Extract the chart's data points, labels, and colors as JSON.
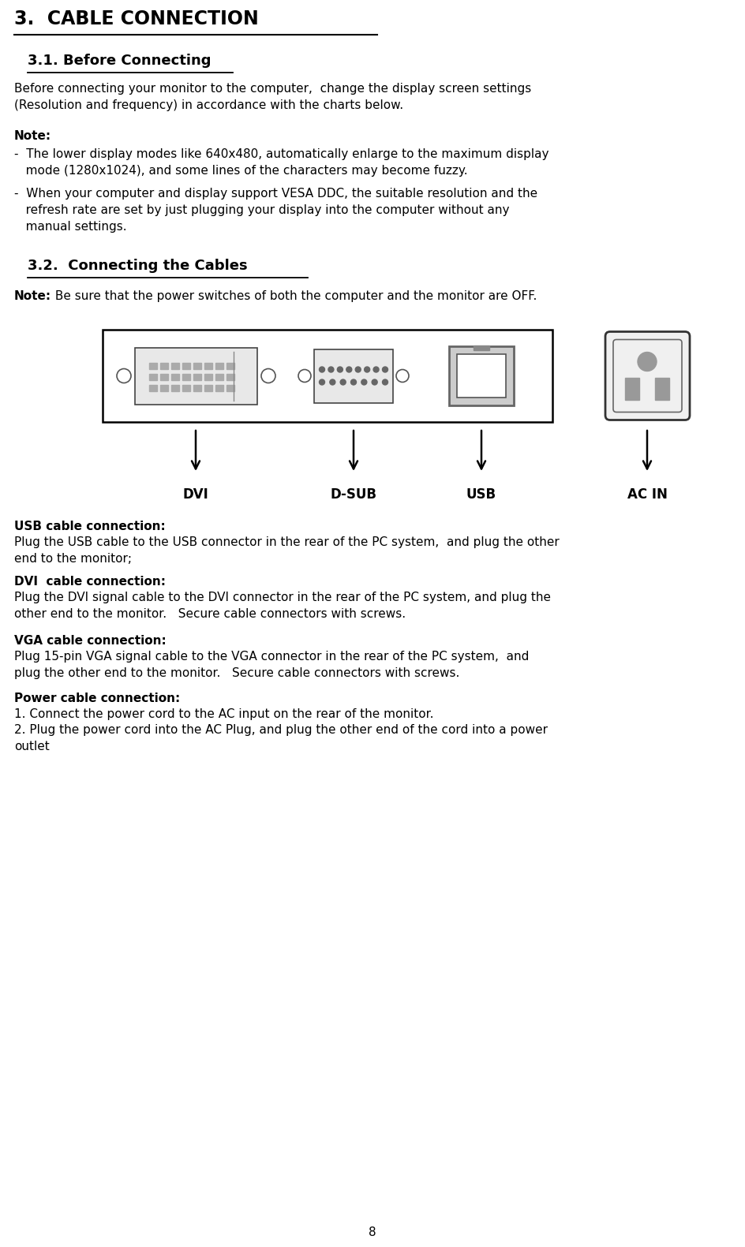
{
  "title": "3.  CABLE CONNECTION",
  "sec31_heading": "3.1. Before Connecting",
  "sec31_body": "Before connecting your monitor to the computer,  change the display screen settings\n(Resolution and frequency) in accordance with the charts below.",
  "note_label": "Note:",
  "note_bullet1": "-  The lower display modes like 640x480, automatically enlarge to the maximum display\n   mode (1280x1024), and some lines of the characters may become fuzzy.",
  "note_bullet2": "-  When your computer and display support VESA DDC, the suitable resolution and the\n   refresh rate are set by just plugging your display into the computer without any\n   manual settings.",
  "sec32_heading": "3.2.  Connecting the Cables",
  "sec32_note_bold": "Note:",
  "sec32_note_body": " Be sure that the power switches of both the computer and the monitor are OFF.",
  "connector_labels": [
    "DVI",
    "D-SUB",
    "USB",
    "AC IN"
  ],
  "usb_heading": "USB cable connection:",
  "usb_body": "Plug the USB cable to the USB connector in the rear of the PC system,  and plug the other\nend to the monitor;",
  "dvi_heading": "DVI  cable connection:",
  "dvi_body": "Plug the DVI signal cable to the DVI connector in the rear of the PC system, and plug the\nother end to the monitor.   Secure cable connectors with screws.",
  "vga_heading": "VGA cable connection:",
  "vga_body": "Plug 15-pin VGA signal cable to the VGA connector in the rear of the PC system,  and\nplug the other end to the monitor.   Secure cable connectors with screws.",
  "power_heading": "Power cable connection:",
  "power_body1": "1. Connect the power cord to the AC input on the rear of the monitor.",
  "power_body2": "2. Plug the power cord into the AC Plug, and plug the other end of the cord into a power\noutlet",
  "page_number": "8",
  "bg_color": "#ffffff",
  "text_color": "#000000",
  "font_family": "DejaVu Sans",
  "title_fontsize": 17,
  "heading_fontsize": 13,
  "body_fontsize": 11,
  "note_bold_fontsize": 11,
  "label_fontsize": 12
}
